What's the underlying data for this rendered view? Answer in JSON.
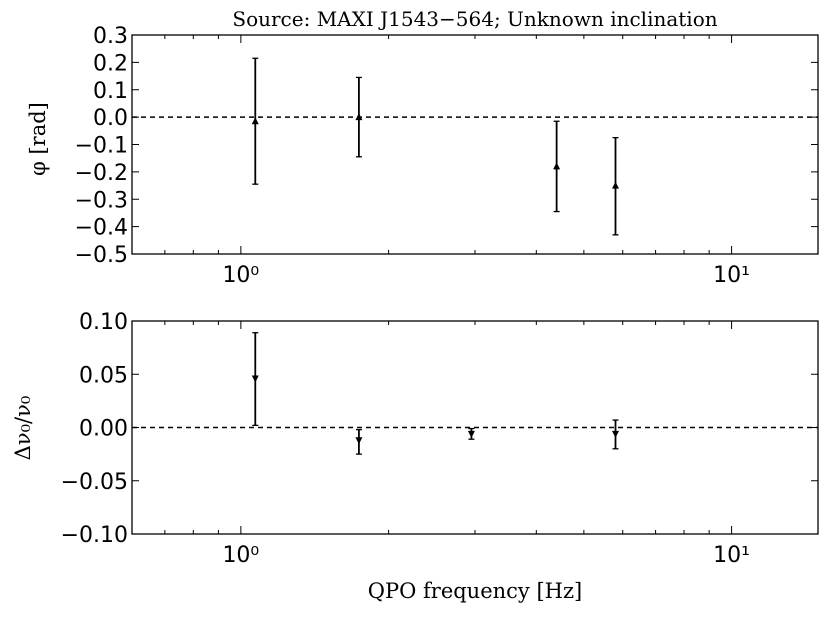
{
  "chart_data": [
    {
      "type": "scatter",
      "title": "Source: MAXI J1543−564; Unknown inclination",
      "xlabel": "",
      "ylabel": "φ [rad]",
      "xscale": "log",
      "xlim": [
        0.6,
        15.0
      ],
      "ylim": [
        -0.5,
        0.3
      ],
      "xticks": [
        "10⁰",
        "10¹"
      ],
      "yticks": [
        "0.3",
        "0.2",
        "0.1",
        "0.0",
        "−0.1",
        "−0.2",
        "−0.3",
        "−0.4",
        "−0.5"
      ],
      "ytick_values": [
        0.3,
        0.2,
        0.1,
        0.0,
        -0.1,
        -0.2,
        -0.3,
        -0.4,
        -0.5
      ],
      "reference_line": 0.0,
      "marker": "triangle-up",
      "grid": false,
      "points": [
        {
          "x": 1.07,
          "y": -0.015,
          "ylow": -0.245,
          "yhigh": 0.215
        },
        {
          "x": 1.74,
          "y": 0.0,
          "ylow": -0.145,
          "yhigh": 0.145
        },
        {
          "x": 4.4,
          "y": -0.18,
          "ylow": -0.345,
          "yhigh": -0.015
        },
        {
          "x": 5.8,
          "y": -0.25,
          "ylow": -0.43,
          "yhigh": -0.075
        }
      ]
    },
    {
      "type": "scatter",
      "title": "",
      "xlabel": "QPO frequency [Hz]",
      "ylabel": "Δν₀/ν₀",
      "xscale": "log",
      "xlim": [
        0.6,
        15.0
      ],
      "ylim": [
        -0.1,
        0.1
      ],
      "xticks": [
        "10⁰",
        "10¹"
      ],
      "yticks": [
        "0.10",
        "0.05",
        "0.00",
        "−0.05",
        "−0.10"
      ],
      "ytick_values": [
        0.1,
        0.05,
        0.0,
        -0.05,
        -0.1
      ],
      "reference_line": 0.0,
      "marker": "triangle-down",
      "grid": false,
      "points": [
        {
          "x": 1.07,
          "y": 0.046,
          "ylow": 0.002,
          "yhigh": 0.089
        },
        {
          "x": 1.74,
          "y": -0.012,
          "ylow": -0.025,
          "yhigh": -0.002
        },
        {
          "x": 2.95,
          "y": -0.006,
          "ylow": -0.011,
          "yhigh": -0.001
        },
        {
          "x": 5.8,
          "y": -0.006,
          "ylow": -0.02,
          "yhigh": 0.007
        }
      ]
    }
  ]
}
